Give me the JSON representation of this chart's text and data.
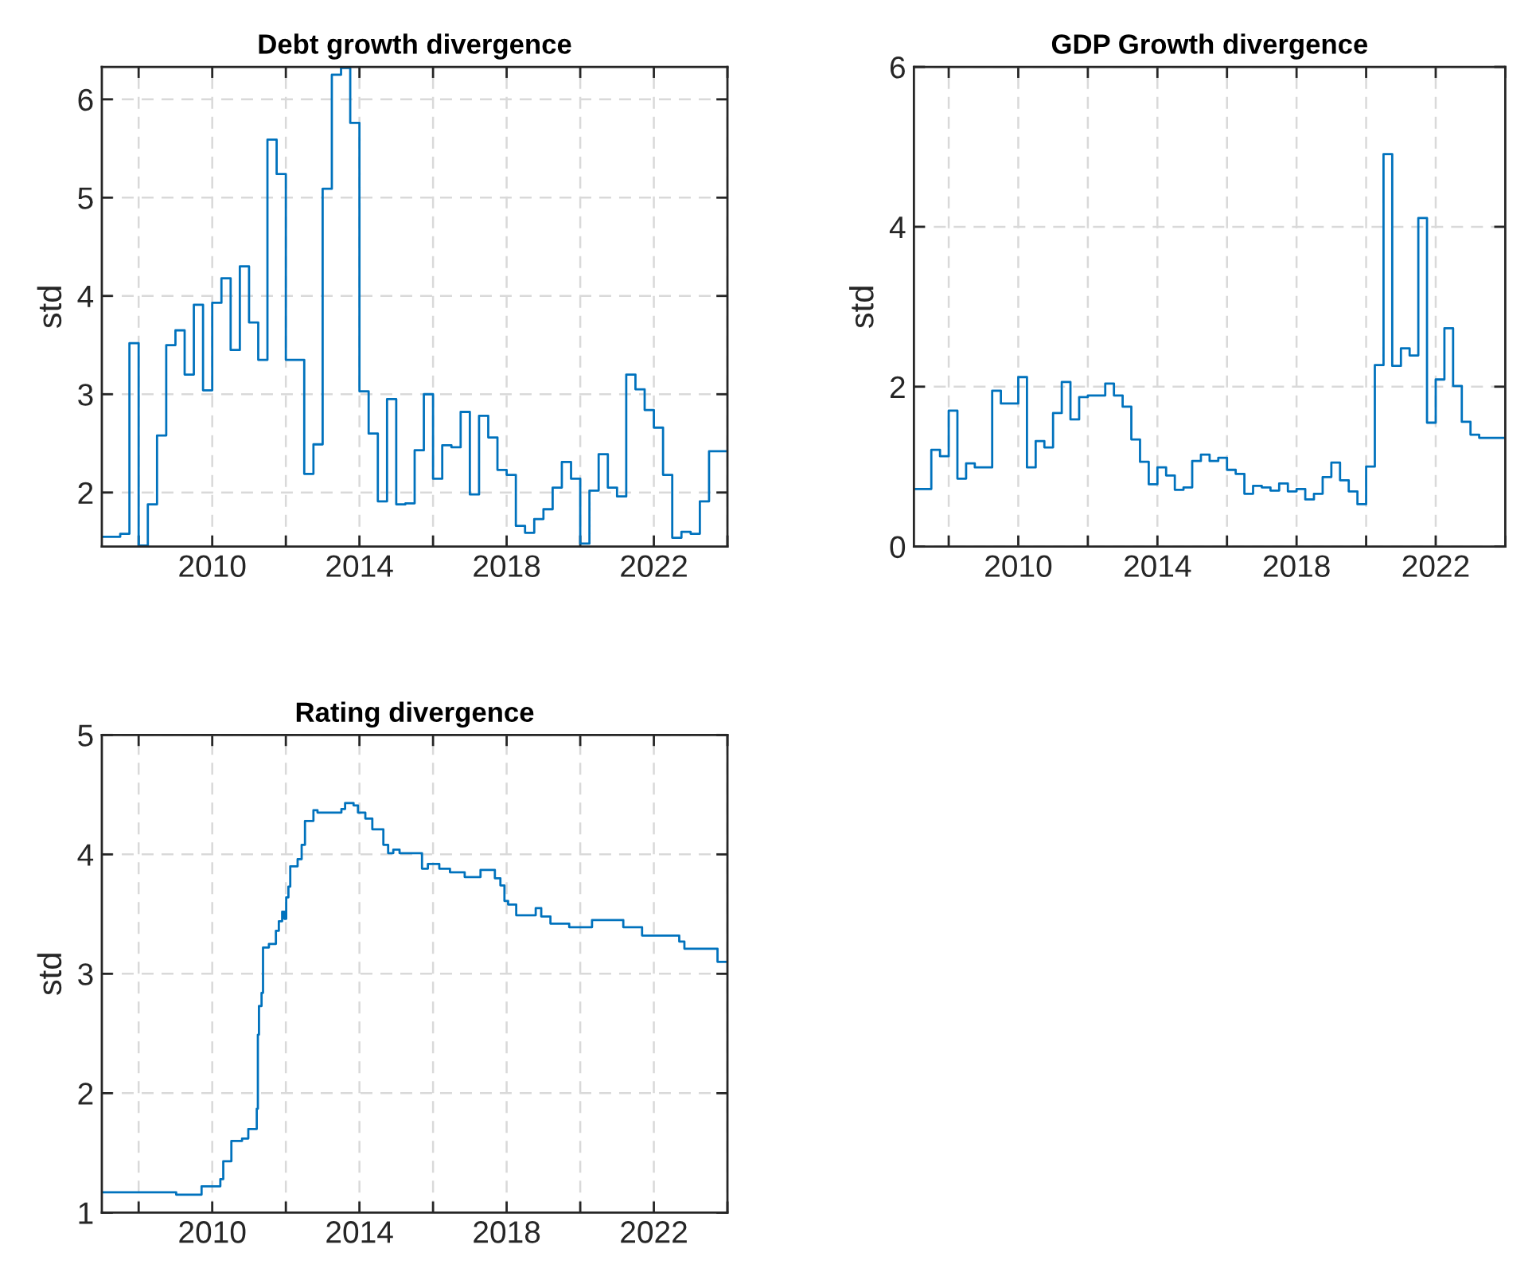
{
  "chart_data": [
    {
      "type": "step",
      "title": "Debt growth divergence",
      "ylabel": "std",
      "grid": true,
      "xlim": [
        2007,
        2024
      ],
      "ylim": [
        1.45,
        6.33
      ],
      "xticks": [
        {
          "value": 2008,
          "label": null
        },
        2010,
        {
          "value": 2012,
          "label": null
        },
        2014,
        {
          "value": 2016,
          "label": null
        },
        2018,
        {
          "value": 2020,
          "label": null
        },
        2022,
        {
          "value": 2024,
          "label": null
        }
      ],
      "yticks": [
        2,
        3,
        4,
        5,
        6
      ],
      "series": [
        {
          "color": "#0072bd",
          "x": [
            2007,
            2007.5,
            2007.75,
            2008,
            2008.25,
            2008.5,
            2008.75,
            2009,
            2009.25,
            2009.5,
            2009.75,
            2010,
            2010.25,
            2010.5,
            2010.75,
            2011,
            2011.25,
            2011.5,
            2011.75,
            2012,
            2012.5,
            2012.75,
            2013,
            2013.25,
            2013.5,
            2013.75,
            2014,
            2014.25,
            2014.5,
            2014.75,
            2015,
            2015.25,
            2015.5,
            2015.75,
            2016,
            2016.25,
            2016.5,
            2016.75,
            2017,
            2017.25,
            2017.5,
            2017.75,
            2018,
            2018.25,
            2018.5,
            2018.75,
            2019,
            2019.25,
            2019.5,
            2019.75,
            2020,
            2020.25,
            2020.5,
            2020.75,
            2021,
            2021.25,
            2021.5,
            2021.75,
            2022,
            2022.25,
            2022.5,
            2022.75,
            2023,
            2023.25,
            2023.5,
            2024
          ],
          "values": [
            1.55,
            1.58,
            3.52,
            1.46,
            1.88,
            2.58,
            3.5,
            3.65,
            3.2,
            3.91,
            3.04,
            3.93,
            4.18,
            3.45,
            4.3,
            3.73,
            3.35,
            5.59,
            5.24,
            3.35,
            2.19,
            2.49,
            5.09,
            6.25,
            6.32,
            5.76,
            3.03,
            2.6,
            1.91,
            2.95,
            1.88,
            1.89,
            2.43,
            3.0,
            2.14,
            2.48,
            2.46,
            2.82,
            1.98,
            2.78,
            2.56,
            2.23,
            2.18,
            1.66,
            1.59,
            1.73,
            1.83,
            2.05,
            2.31,
            2.14,
            1.48,
            2.02,
            2.39,
            2.05,
            1.96,
            3.2,
            3.05,
            2.84,
            2.66,
            2.18,
            1.54,
            1.6,
            1.58,
            1.91,
            2.42,
            2.42
          ]
        }
      ]
    },
    {
      "type": "step",
      "title": "GDP Growth divergence",
      "ylabel": "std",
      "grid": true,
      "xlim": [
        2007,
        2024
      ],
      "ylim": [
        0,
        6
      ],
      "xticks": [
        {
          "value": 2008,
          "label": null
        },
        2010,
        {
          "value": 2012,
          "label": null
        },
        2014,
        {
          "value": 2016,
          "label": null
        },
        2018,
        {
          "value": 2020,
          "label": null
        },
        2022,
        {
          "value": 2024,
          "label": null
        }
      ],
      "yticks": [
        0,
        2,
        4,
        6
      ],
      "series": [
        {
          "color": "#0072bd",
          "x": [
            2007,
            2007.5,
            2007.75,
            2008,
            2008.25,
            2008.5,
            2008.75,
            2009.25,
            2009.5,
            2010,
            2010.25,
            2010.5,
            2010.75,
            2011,
            2011.25,
            2011.5,
            2011.75,
            2012,
            2012.5,
            2012.75,
            2013,
            2013.25,
            2013.5,
            2013.75,
            2014,
            2014.25,
            2014.5,
            2014.75,
            2015,
            2015.25,
            2015.5,
            2015.75,
            2016,
            2016.25,
            2016.5,
            2016.75,
            2017,
            2017.25,
            2017.5,
            2017.75,
            2018,
            2018.25,
            2018.5,
            2018.75,
            2019,
            2019.25,
            2019.5,
            2019.75,
            2020,
            2020.25,
            2020.5,
            2020.75,
            2021,
            2021.25,
            2021.5,
            2021.75,
            2022,
            2022.25,
            2022.5,
            2022.75,
            2023,
            2023.25,
            2024
          ],
          "values": [
            0.72,
            1.21,
            1.13,
            1.7,
            0.85,
            1.04,
            0.99,
            1.95,
            1.79,
            2.12,
            0.99,
            1.32,
            1.24,
            1.67,
            2.06,
            1.59,
            1.87,
            1.89,
            2.04,
            1.89,
            1.75,
            1.34,
            1.06,
            0.78,
            0.99,
            0.89,
            0.71,
            0.74,
            1.07,
            1.15,
            1.07,
            1.11,
            0.96,
            0.91,
            0.66,
            0.76,
            0.74,
            0.7,
            0.79,
            0.69,
            0.72,
            0.59,
            0.66,
            0.87,
            1.05,
            0.83,
            0.69,
            0.53,
            1.0,
            2.27,
            4.91,
            2.26,
            2.48,
            2.39,
            4.11,
            1.55,
            2.09,
            2.73,
            2.01,
            1.56,
            1.4,
            1.36,
            1.36
          ]
        }
      ]
    },
    {
      "type": "step",
      "title": "Rating divergence",
      "ylabel": "std",
      "grid": true,
      "xlim": [
        2007,
        2024
      ],
      "ylim": [
        1,
        5
      ],
      "xticks": [
        {
          "value": 2008,
          "label": null
        },
        2010,
        {
          "value": 2012,
          "label": null
        },
        2014,
        {
          "value": 2016,
          "label": null
        },
        2018,
        {
          "value": 2020,
          "label": null
        },
        2022,
        {
          "value": 2024,
          "label": null
        }
      ],
      "yticks": [
        1,
        2,
        3,
        4,
        5
      ],
      "series": [
        {
          "color": "#0072bd",
          "x": [
            2007,
            2009.02,
            2009.71,
            2010.22,
            2010.3,
            2010.52,
            2010.81,
            2010.98,
            2011.21,
            2011.24,
            2011.27,
            2011.34,
            2011.38,
            2011.54,
            2011.73,
            2011.81,
            2011.9,
            2011.96,
            2012.01,
            2012.07,
            2012.12,
            2012.32,
            2012.43,
            2012.52,
            2012.75,
            2012.86,
            2013.51,
            2013.61,
            2013.84,
            2013.96,
            2014.16,
            2014.35,
            2014.65,
            2014.78,
            2014.92,
            2015.09,
            2015.7,
            2015.86,
            2016.17,
            2016.46,
            2016.86,
            2017.29,
            2017.68,
            2017.83,
            2017.94,
            2018.04,
            2018.26,
            2018.79,
            2018.94,
            2019.19,
            2019.7,
            2020.32,
            2021.17,
            2021.68,
            2022.69,
            2022.83,
            2023.73,
            2024
          ],
          "values": [
            1.17,
            1.15,
            1.22,
            1.28,
            1.43,
            1.6,
            1.62,
            1.7,
            1.87,
            2.49,
            2.73,
            2.84,
            3.22,
            3.25,
            3.36,
            3.44,
            3.52,
            3.46,
            3.64,
            3.73,
            3.9,
            3.96,
            4.08,
            4.28,
            4.37,
            4.35,
            4.38,
            4.43,
            4.41,
            4.35,
            4.3,
            4.21,
            4.08,
            4.01,
            4.04,
            4.01,
            3.88,
            3.92,
            3.88,
            3.85,
            3.81,
            3.87,
            3.8,
            3.74,
            3.61,
            3.58,
            3.49,
            3.55,
            3.48,
            3.42,
            3.39,
            3.45,
            3.39,
            3.32,
            3.27,
            3.21,
            3.1,
            3.1
          ]
        }
      ]
    }
  ]
}
